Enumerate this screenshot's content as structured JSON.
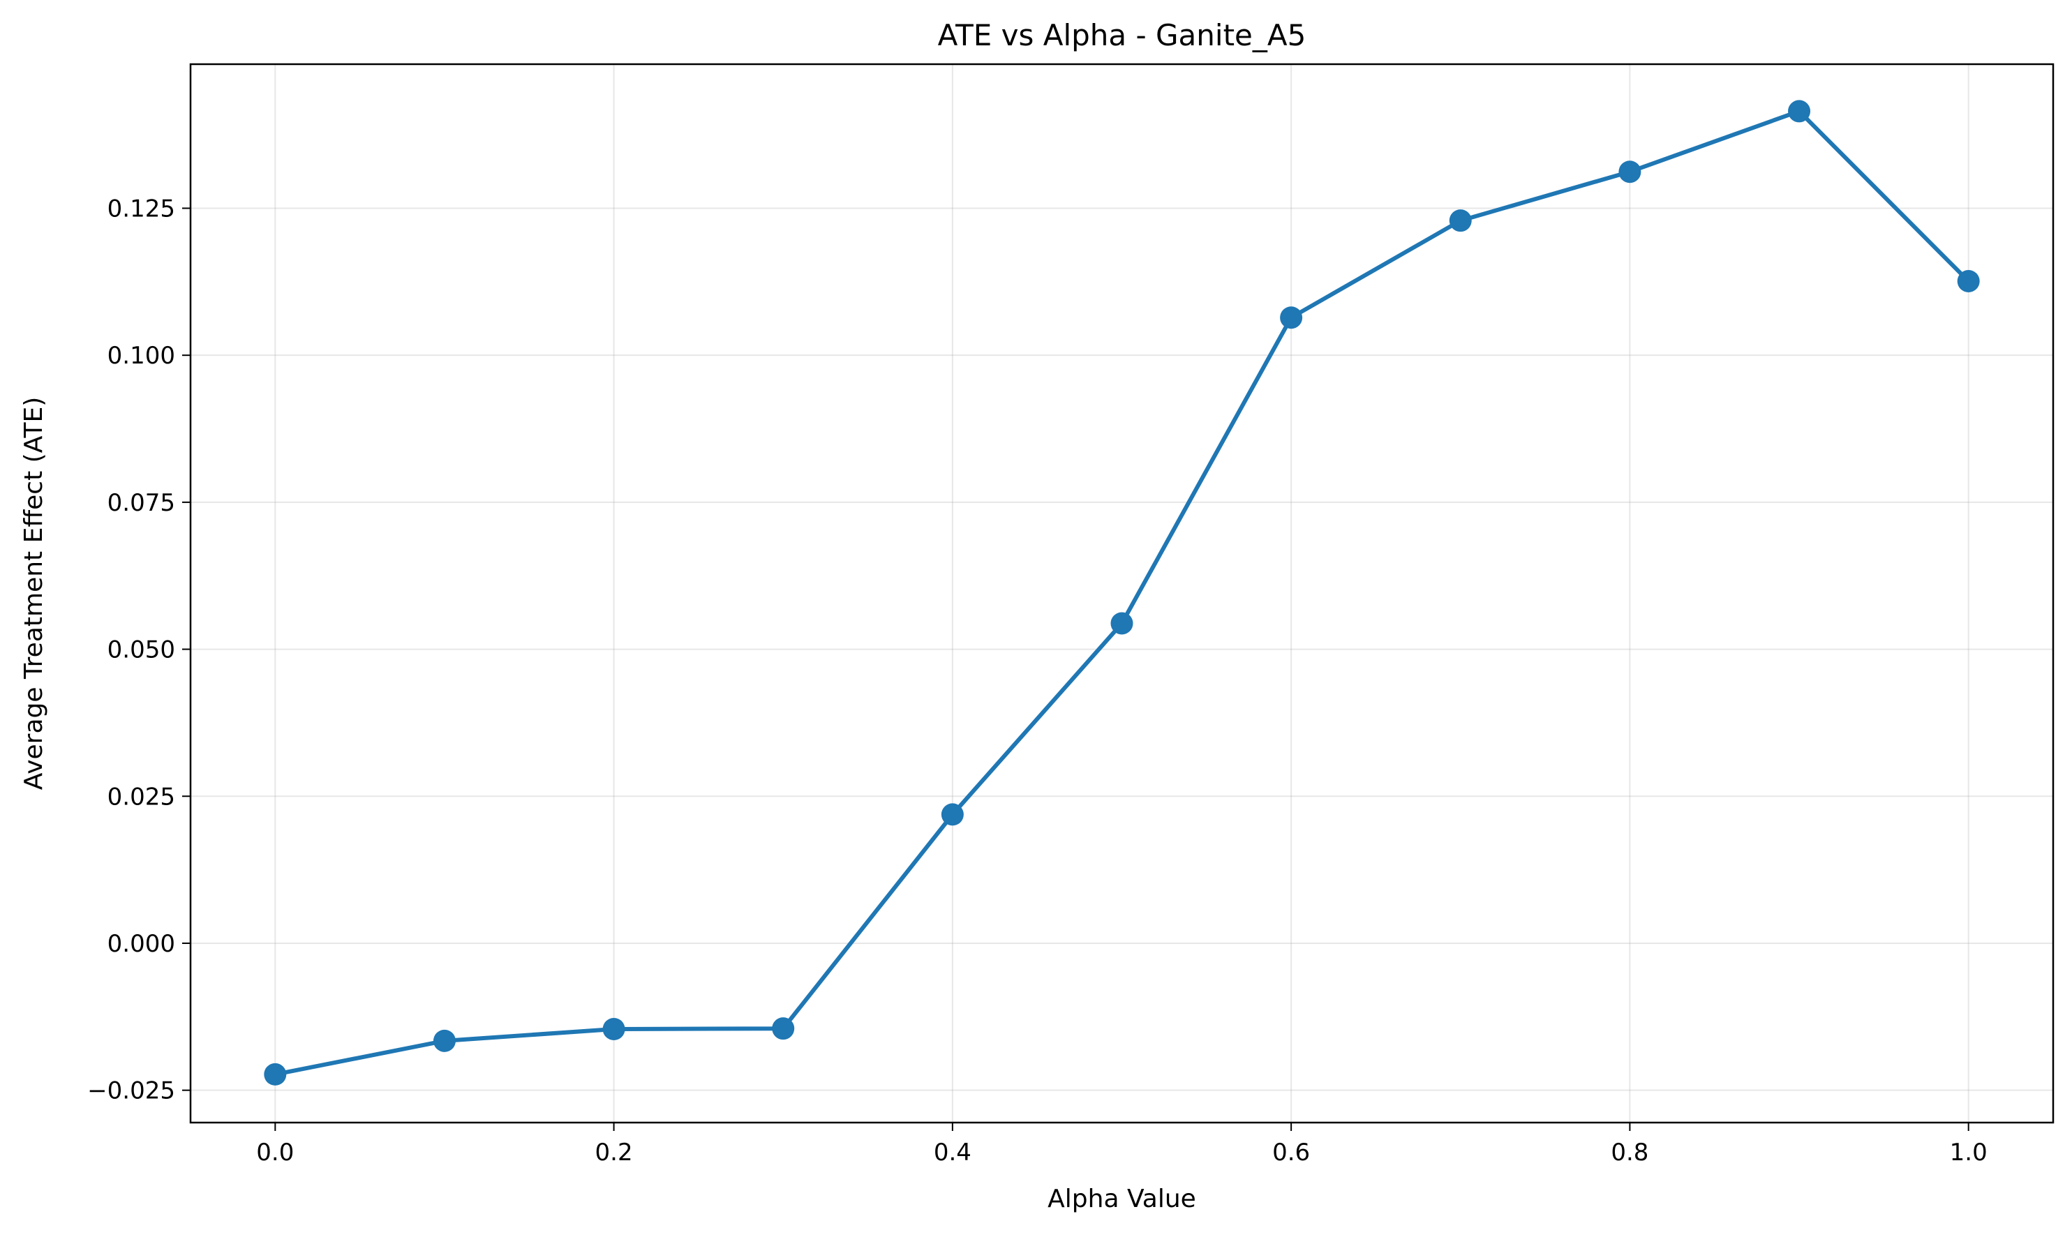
{
  "chart_data": {
    "type": "line",
    "title": "ATE vs Alpha - Ganite_A5",
    "xlabel": "Alpha Value",
    "ylabel": "Average Treatment Effect (ATE)",
    "xlim": [
      -0.05,
      1.05
    ],
    "ylim": [
      -0.0305,
      0.1495
    ],
    "grid": true,
    "x_ticks": [
      {
        "value": 0.0,
        "label": "0.0"
      },
      {
        "value": 0.2,
        "label": "0.2"
      },
      {
        "value": 0.4,
        "label": "0.4"
      },
      {
        "value": 0.6,
        "label": "0.6"
      },
      {
        "value": 0.8,
        "label": "0.8"
      },
      {
        "value": 1.0,
        "label": "1.0"
      }
    ],
    "y_ticks": [
      {
        "value": -0.025,
        "label": "−0.025"
      },
      {
        "value": 0.0,
        "label": "0.000"
      },
      {
        "value": 0.025,
        "label": "0.025"
      },
      {
        "value": 0.05,
        "label": "0.050"
      },
      {
        "value": 0.075,
        "label": "0.075"
      },
      {
        "value": 0.1,
        "label": "0.100"
      },
      {
        "value": 0.125,
        "label": "0.125"
      }
    ],
    "series": [
      {
        "color": "#1f77b4",
        "marker": "circle",
        "x": [
          0.0,
          0.1,
          0.2,
          0.3,
          0.4,
          0.5,
          0.6,
          0.7,
          0.8,
          0.9,
          1.0
        ],
        "y": [
          -0.0223,
          -0.0166,
          -0.0146,
          -0.0145,
          0.0219,
          0.0544,
          0.1064,
          0.1229,
          0.1312,
          0.1415,
          0.1126
        ]
      }
    ]
  }
}
